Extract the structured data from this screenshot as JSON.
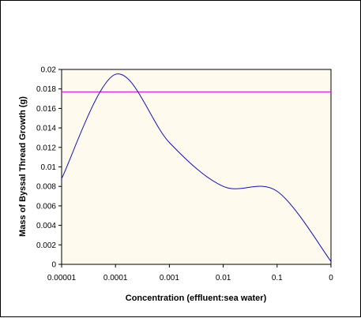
{
  "chart_data": {
    "type": "line",
    "title": "",
    "xlabel": "Concentration (effluent:sea water)",
    "ylabel": "Mass of Byssal Thread Growth (g)",
    "x_scale": "categorical",
    "categories": [
      "0.00001",
      "0.0001",
      "0.001",
      "0.01",
      "0.1",
      "0"
    ],
    "ylim": [
      0,
      0.02
    ],
    "y_ticks": [
      "0",
      "0.002",
      "0.004",
      "0.006",
      "0.008",
      "0.01",
      "0.012",
      "0.014",
      "0.016",
      "0.018",
      "0.02"
    ],
    "grid": false,
    "legend": "none",
    "plot_background": "#fffaee",
    "series": [
      {
        "color": "#1010c8",
        "smooth": true,
        "values": [
          0.0088,
          0.0195,
          0.0125,
          0.008,
          0.0075,
          0.0003
        ]
      }
    ],
    "reference_line": {
      "color": "#e000e0",
      "value": 0.0177
    }
  }
}
